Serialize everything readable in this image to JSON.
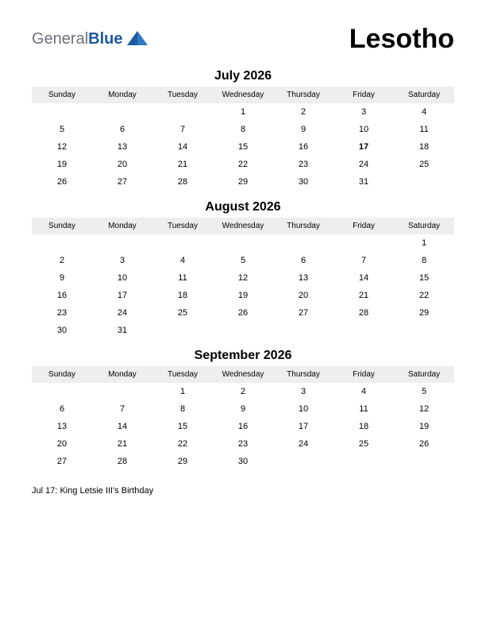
{
  "brand": {
    "part1": "General",
    "part2": "Blue"
  },
  "country": "Lesotho",
  "weekdays": [
    "Sunday",
    "Monday",
    "Tuesday",
    "Wednesday",
    "Thursday",
    "Friday",
    "Saturday"
  ],
  "months": [
    {
      "title": "July 2026",
      "holidays": [
        17
      ],
      "weeks": [
        [
          "",
          "",
          "",
          "1",
          "2",
          "3",
          "4"
        ],
        [
          "5",
          "6",
          "7",
          "8",
          "9",
          "10",
          "11"
        ],
        [
          "12",
          "13",
          "14",
          "15",
          "16",
          "17",
          "18"
        ],
        [
          "19",
          "20",
          "21",
          "22",
          "23",
          "24",
          "25"
        ],
        [
          "26",
          "27",
          "28",
          "29",
          "30",
          "31",
          ""
        ]
      ]
    },
    {
      "title": "August 2026",
      "holidays": [],
      "weeks": [
        [
          "",
          "",
          "",
          "",
          "",
          "",
          "1"
        ],
        [
          "2",
          "3",
          "4",
          "5",
          "6",
          "7",
          "8"
        ],
        [
          "9",
          "10",
          "11",
          "12",
          "13",
          "14",
          "15"
        ],
        [
          "16",
          "17",
          "18",
          "19",
          "20",
          "21",
          "22"
        ],
        [
          "23",
          "24",
          "25",
          "26",
          "27",
          "28",
          "29"
        ],
        [
          "30",
          "31",
          "",
          "",
          "",
          "",
          ""
        ]
      ]
    },
    {
      "title": "September 2026",
      "holidays": [],
      "weeks": [
        [
          "",
          "",
          "1",
          "2",
          "3",
          "4",
          "5"
        ],
        [
          "6",
          "7",
          "8",
          "9",
          "10",
          "11",
          "12"
        ],
        [
          "13",
          "14",
          "15",
          "16",
          "17",
          "18",
          "19"
        ],
        [
          "20",
          "21",
          "22",
          "23",
          "24",
          "25",
          "26"
        ],
        [
          "27",
          "28",
          "29",
          "30",
          "",
          "",
          ""
        ]
      ]
    }
  ],
  "footnotes": [
    "Jul 17: King Letsie III's Birthday"
  ],
  "colors": {
    "holiday": "#c00000",
    "header_bg": "#eeeeee",
    "logo_gray": "#6b7280",
    "logo_blue": "#1e5a9e"
  }
}
